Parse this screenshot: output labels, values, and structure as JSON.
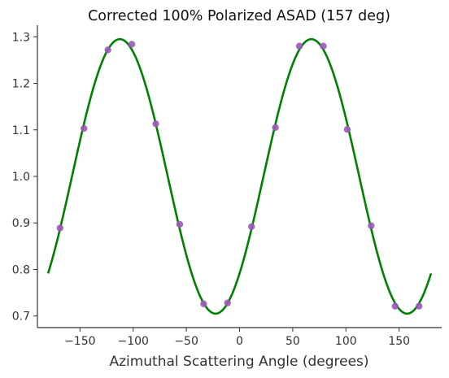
{
  "chart_data": {
    "type": "scatter",
    "title": "Corrected 100% Polarized ASAD (157 deg)",
    "xlabel": "Azimuthal Scattering Angle (degrees)",
    "ylabel": "",
    "xlim": [
      -190,
      190
    ],
    "ylim": [
      0.675,
      1.325
    ],
    "xticks": [
      -150,
      -100,
      -50,
      0,
      50,
      100,
      150
    ],
    "xtick_labels": [
      "−150",
      "−100",
      "−50",
      "0",
      "50",
      "100",
      "150"
    ],
    "yticks": [
      0.7,
      0.8,
      0.9,
      1.0,
      1.1,
      1.2,
      1.3
    ],
    "ytick_labels": [
      "0.7",
      "0.8",
      "0.9",
      "1.0",
      "1.1",
      "1.2",
      "1.3"
    ],
    "grid": false,
    "legend": "none",
    "series": [
      {
        "kind": "points",
        "color": "#9b59b6",
        "x": [
          -168.75,
          -146.25,
          -123.75,
          -101.25,
          -78.75,
          -56.25,
          -33.75,
          -11.25,
          11.25,
          33.75,
          56.25,
          78.75,
          101.25,
          123.75,
          146.25,
          168.75
        ],
        "y": [
          0.889,
          1.103,
          1.272,
          1.284,
          1.113,
          0.897,
          0.726,
          0.728,
          0.892,
          1.105,
          1.28,
          1.28,
          1.101,
          0.894,
          0.721,
          0.721
        ]
      },
      {
        "kind": "fit-curve",
        "color": "#008000",
        "formula": "1.0 + 0.295 * cos(2 * (x - 67.5 deg))",
        "x_range": [
          -180,
          180
        ]
      }
    ]
  }
}
